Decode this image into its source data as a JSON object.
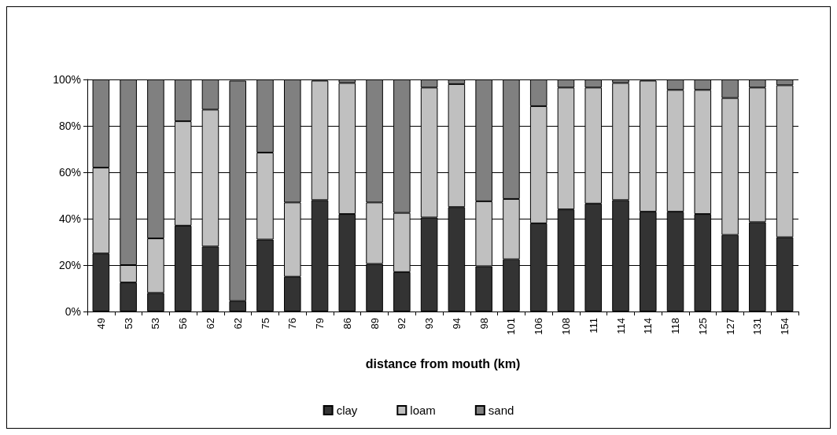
{
  "chart_data": {
    "type": "bar",
    "stacked": true,
    "xlabel": "distance from mouth (km)",
    "categories": [
      "49",
      "53",
      "53",
      "56",
      "62",
      "62",
      "75",
      "76",
      "79",
      "86",
      "89",
      "92",
      "93",
      "94",
      "98",
      "101",
      "106",
      "108",
      "111",
      "114",
      "114",
      "118",
      "125",
      "127",
      "131",
      "154"
    ],
    "series": [
      {
        "name": "clay",
        "color": "#333333",
        "values": [
          25,
          12.5,
          8,
          37,
          28,
          4.5,
          31,
          15,
          48,
          42,
          20.5,
          17,
          40.5,
          45,
          19.5,
          22.5,
          38,
          44,
          46.5,
          48,
          43,
          43,
          42,
          33,
          38.5,
          32
        ]
      },
      {
        "name": "loam",
        "color": "#c0c0c0",
        "values": [
          37,
          7.5,
          23.5,
          45,
          59,
          null,
          37.5,
          32,
          51.5,
          56.5,
          26.5,
          25.5,
          56,
          53,
          28,
          26,
          50.5,
          52.5,
          50,
          50.5,
          56.5,
          52.5,
          53.5,
          59,
          58,
          65.5
        ]
      },
      {
        "name": "sand",
        "color": "#808080",
        "values": [
          38,
          80,
          68.5,
          18,
          13,
          95,
          31.5,
          53,
          0.5,
          1.5,
          53,
          57.5,
          3.5,
          2,
          52.5,
          51.5,
          11.5,
          3.5,
          3.5,
          1.5,
          0.5,
          4.5,
          4.5,
          8,
          3.5,
          2.5
        ]
      }
    ],
    "ylim": [
      0,
      100
    ],
    "yticks": [
      {
        "value": 0,
        "label": "0%"
      },
      {
        "value": 20,
        "label": "20%"
      },
      {
        "value": 40,
        "label": "40%"
      },
      {
        "value": 60,
        "label": "60%"
      },
      {
        "value": 80,
        "label": "80%"
      },
      {
        "value": 100,
        "label": "100%"
      }
    ],
    "grid": "y",
    "legend": "bottom"
  }
}
